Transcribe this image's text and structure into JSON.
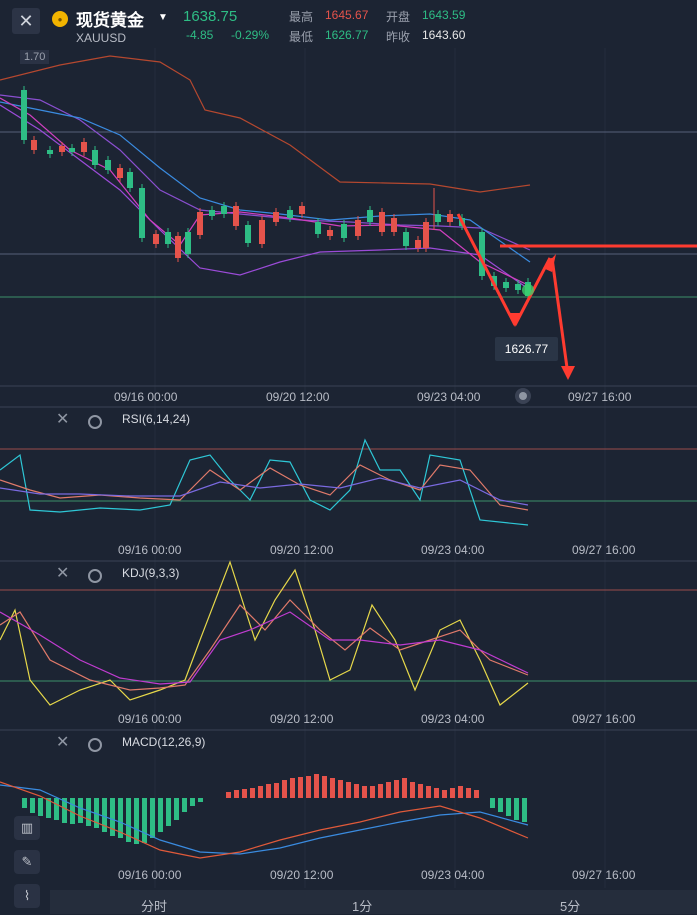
{
  "header": {
    "close_label": "✕",
    "title": "现货黄金",
    "symbol": "XAUUSD",
    "price": "1638.75",
    "change": "-4.85",
    "change_pct": "-0.29%",
    "high_label": "最高",
    "high_value": "1645.67",
    "open_label": "开盘",
    "open_value": "1643.59",
    "low_label": "最低",
    "low_value": "1626.77",
    "prev_close_label": "昨收",
    "prev_close_value": "1643.60"
  },
  "main_chart": {
    "left_label": "1.70",
    "low_marker": "1626.77",
    "time_labels": [
      "09/16 00:00",
      "09/20 12:00",
      "09/23 04:00",
      "09/27 16:00"
    ]
  },
  "indicators": [
    {
      "name": "RSI(6,14,24)",
      "time_labels": [
        "09/16 00:00",
        "09/20 12:00",
        "09/23 04:00",
        "09/27 16:00"
      ]
    },
    {
      "name": "KDJ(9,3,3)",
      "time_labels": [
        "09/16 00:00",
        "09/20 12:00",
        "09/23 04:00",
        "09/27 16:00"
      ]
    },
    {
      "name": "MACD(12,26,9)",
      "time_labels": [
        "09/16 00:00",
        "09/20 12:00",
        "09/23 04:00",
        "09/27 16:00"
      ]
    }
  ],
  "timeframes": [
    "分时",
    "1分",
    "5分"
  ],
  "colors": {
    "up": "#e5534b",
    "down": "#2ebd85",
    "background": "#1c2433",
    "annotation": "#ff3b30"
  },
  "icons": {
    "close": "close-icon",
    "coin": "gold-coin-icon",
    "dropdown": "chevron-down-icon",
    "settings": "gear-icon",
    "draw": "pencil-icon",
    "indicator": "indicator-icon",
    "candle_type": "candle-icon"
  }
}
